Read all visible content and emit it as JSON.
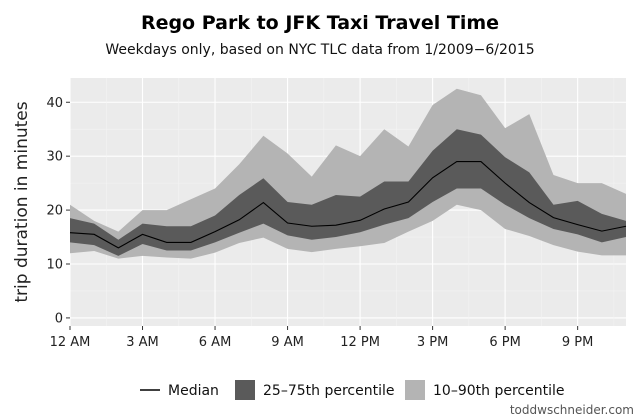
{
  "chart_data": {
    "type": "area",
    "title": "Rego Park to JFK Taxi Travel Time",
    "subtitle": "Weekdays only, based on NYC TLC data from 1/2009−6/2015",
    "xlabel": "",
    "ylabel": "trip duration in minutes",
    "xlim": [
      0,
      23
    ],
    "ylim": [
      -1.5,
      44.5
    ],
    "x": [
      0,
      1,
      2,
      3,
      4,
      5,
      6,
      7,
      8,
      9,
      10,
      11,
      12,
      13,
      14,
      15,
      16,
      17,
      18,
      19,
      20,
      21,
      22,
      23
    ],
    "x_ticks": [
      {
        "value": 0,
        "label": "12 AM"
      },
      {
        "value": 3,
        "label": "3 AM"
      },
      {
        "value": 6,
        "label": "6 AM"
      },
      {
        "value": 9,
        "label": "9 AM"
      },
      {
        "value": 12,
        "label": "12 PM"
      },
      {
        "value": 15,
        "label": "3 PM"
      },
      {
        "value": 18,
        "label": "6 PM"
      },
      {
        "value": 21,
        "label": "9 PM"
      }
    ],
    "y_ticks": [
      0,
      10,
      20,
      30,
      40
    ],
    "grid": true,
    "legend_position": "bottom",
    "series": [
      {
        "name": "Median",
        "kind": "line",
        "color": "#000000",
        "values": [
          15.8,
          15.5,
          13.0,
          15.5,
          14.0,
          14.0,
          16.0,
          18.2,
          21.4,
          17.6,
          17.0,
          17.2,
          18.1,
          20.2,
          21.5,
          26.0,
          29.0,
          29.0,
          25.0,
          21.4,
          18.6,
          17.3,
          16.1,
          17.0
        ]
      },
      {
        "name": "25–75th percentile",
        "kind": "band",
        "color": "#5a5a5a",
        "lower": [
          14.0,
          13.5,
          11.5,
          13.7,
          12.5,
          12.5,
          14.0,
          15.8,
          17.5,
          15.3,
          14.5,
          15.0,
          15.9,
          17.3,
          18.5,
          21.5,
          24.0,
          24.0,
          21.0,
          18.5,
          16.5,
          15.5,
          14.0,
          15.0
        ],
        "upper": [
          18.5,
          17.5,
          14.5,
          17.5,
          17.0,
          17.0,
          19.0,
          22.8,
          25.9,
          21.5,
          21.0,
          22.8,
          22.5,
          25.3,
          25.3,
          31.0,
          35.0,
          34.0,
          29.8,
          27.0,
          21.0,
          21.7,
          19.3,
          18.0
        ]
      },
      {
        "name": "10–90th percentile",
        "kind": "band",
        "color": "#b4b4b4",
        "lower": [
          12.0,
          12.4,
          11.0,
          11.5,
          11.2,
          11.0,
          12.1,
          13.9,
          14.9,
          12.8,
          12.2,
          12.8,
          13.3,
          13.9,
          16.0,
          18.0,
          21.0,
          20.0,
          16.5,
          15.2,
          13.5,
          12.3,
          11.6,
          11.6
        ],
        "upper": [
          21.0,
          18.0,
          16.0,
          20.0,
          20.0,
          22.0,
          24.0,
          28.5,
          33.8,
          30.5,
          26.2,
          32.0,
          30.0,
          35.0,
          31.8,
          39.5,
          42.5,
          41.3,
          35.2,
          37.8,
          26.5,
          25.0,
          25.0,
          23.0
        ]
      }
    ]
  },
  "footer": {
    "credit": "toddwschneider.com"
  },
  "colors": {
    "panel_background": "#ebebeb",
    "grid_major": "#ffffff",
    "grid_minor": "#f4f4f4"
  }
}
